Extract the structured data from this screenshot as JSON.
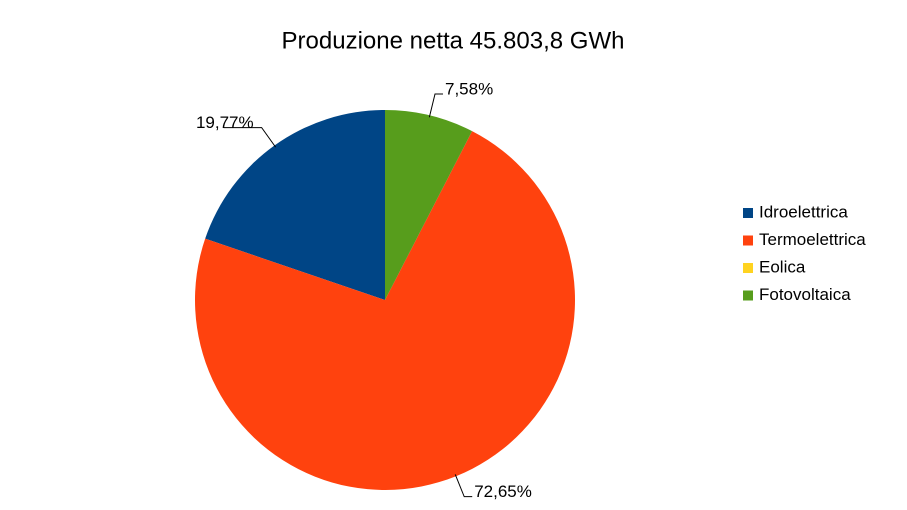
{
  "chart_data": {
    "type": "pie",
    "title": "Produzione netta 45.803,8 GWh",
    "categories": [
      "Idroelettrica",
      "Termoelettrica",
      "Eolica",
      "Fotovoltaica"
    ],
    "values": [
      19.77,
      72.65,
      0,
      7.58
    ],
    "value_labels": [
      "19,77%",
      "72,65%",
      null,
      "7,58%"
    ],
    "colors": [
      "#004586",
      "#ff420e",
      "#ffd320",
      "#579d1c"
    ],
    "legend": "right"
  }
}
